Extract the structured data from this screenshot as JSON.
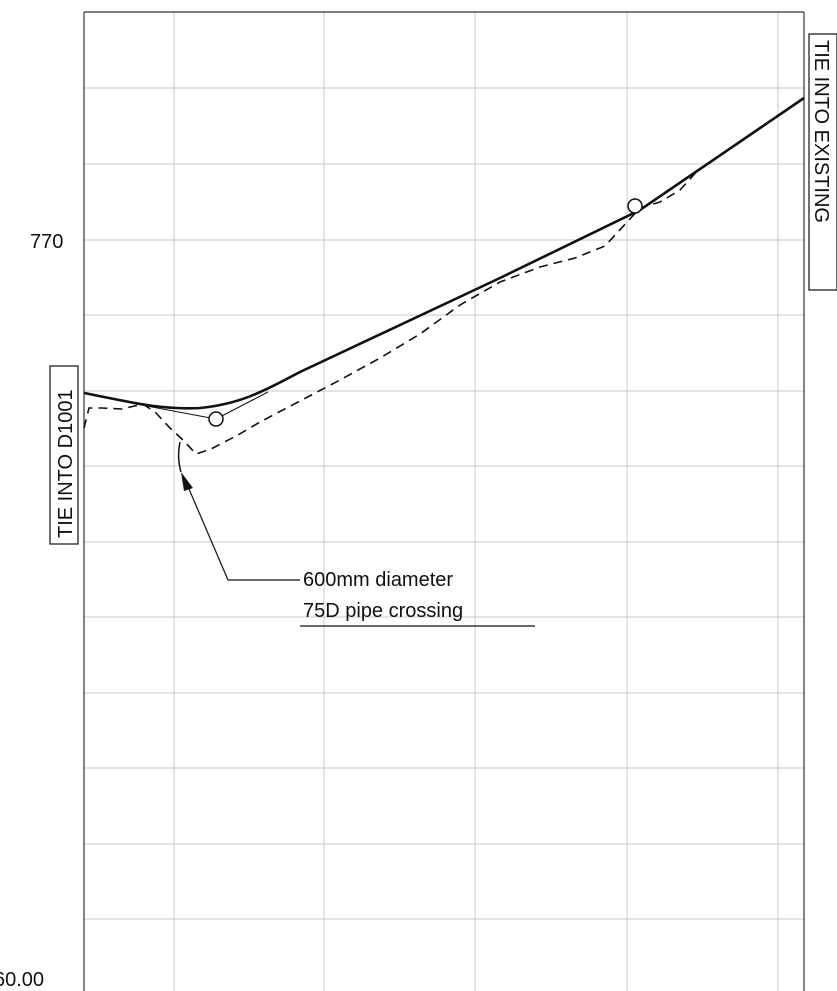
{
  "profile": {
    "elevation_labels": {
      "upper": "770",
      "lower": "60.00"
    },
    "left_tie_in": "TIE INTO D1001",
    "right_tie_in": "TIE INTO EXISTING",
    "crossing_note": {
      "line1": "600mm diameter",
      "line2": "75D pipe crossing"
    }
  }
}
